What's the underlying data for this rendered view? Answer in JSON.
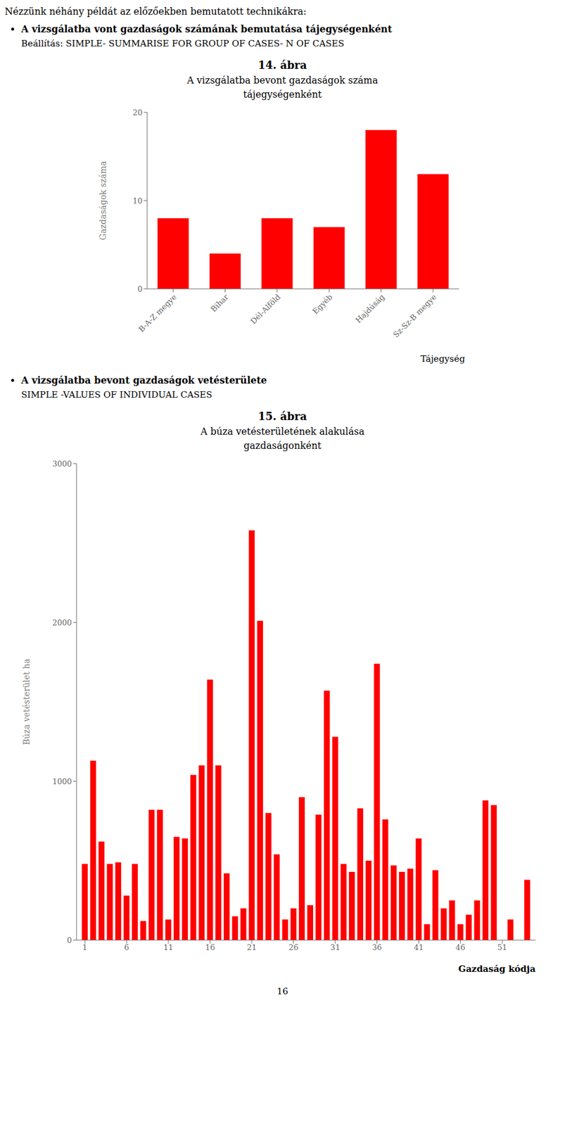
{
  "chart_data": [
    {
      "type": "bar",
      "title": "A vizsgálatba bevont gazdaságok száma",
      "subtitle": "tájegységenként",
      "annotations": [
        "Nézzünk néhány példát az előzőekben bemutatott technikákra:",
        "A vizsgálatba vont gazdaságok számának bemutatása tájegységenként",
        "Beállítás: SIMPLE- SUMMARISE FOR GROUP OF CASES- N OF CASES",
        "14. ábra"
      ],
      "xlabel": "Tájegység",
      "ylabel": "Gazdaságok száma",
      "categories": [
        "B-A-Z megye",
        "Bihar",
        "Dél-Alföld",
        "Egyéb",
        "Hajdúság",
        "Sz-Sz-B megye"
      ],
      "values": [
        8,
        4,
        8,
        7,
        18,
        13
      ],
      "color": "#FF0000",
      "ylim": [
        0,
        20
      ],
      "yticks": [
        0,
        10,
        20
      ]
    },
    {
      "type": "bar",
      "title": "A búza vetésterületének alakulása",
      "subtitle": "gazdaságonként",
      "annotations": [
        "A vizsgálatba bevont gazdaságok vetésterülete",
        "SIMPLE -VALUES OF INDIVIDUAL CASES",
        "15. ábra",
        "16"
      ],
      "xlabel": "Gazdaság kódja",
      "ylabel": "Búza vetésterület ha",
      "x": [
        1,
        2,
        3,
        4,
        5,
        6,
        7,
        8,
        9,
        10,
        11,
        12,
        13,
        14,
        15,
        16,
        17,
        18,
        19,
        20,
        21,
        22,
        23,
        24,
        25,
        26,
        27,
        28,
        29,
        30,
        31,
        32,
        33,
        34,
        35,
        36,
        37,
        38,
        39,
        40,
        41,
        42,
        43,
        44,
        45,
        46,
        47,
        48,
        49,
        50,
        51,
        52,
        53,
        54
      ],
      "values": [
        480,
        1130,
        620,
        480,
        490,
        280,
        480,
        120,
        820,
        820,
        130,
        650,
        640,
        1040,
        1100,
        1640,
        1100,
        420,
        150,
        200,
        2580,
        2010,
        800,
        540,
        130,
        200,
        900,
        220,
        790,
        1570,
        1280,
        480,
        430,
        830,
        500,
        1740,
        760,
        470,
        430,
        450,
        640,
        100,
        440,
        200,
        250,
        100,
        160,
        250,
        880,
        850,
        0,
        130,
        0,
        380
      ],
      "color": "#FF0000",
      "xlim": [
        0,
        55
      ],
      "xticks": [
        1,
        6,
        11,
        16,
        21,
        26,
        31,
        36,
        41,
        46,
        51
      ],
      "ylim": [
        0,
        3000
      ],
      "yticks": [
        0,
        1000,
        2000,
        3000
      ]
    }
  ]
}
